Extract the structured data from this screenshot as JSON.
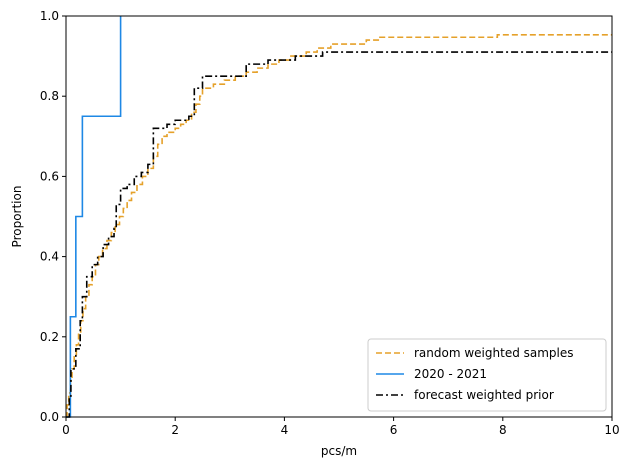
{
  "chart_data": {
    "type": "line",
    "title": "",
    "xlabel": "pcs/m",
    "ylabel": "Proportion",
    "xlim": [
      0,
      10
    ],
    "ylim": [
      0,
      1
    ],
    "x_ticks": [
      0,
      2,
      4,
      6,
      8,
      10
    ],
    "y_ticks": [
      0.0,
      0.2,
      0.4,
      0.6,
      0.8,
      1.0
    ],
    "x_tick_labels": [
      "0",
      "2",
      "4",
      "6",
      "8",
      "10"
    ],
    "y_tick_labels": [
      "0.0",
      "0.2",
      "0.4",
      "0.6",
      "0.8",
      "1.0"
    ],
    "grid": false,
    "legend_position": "lower-right",
    "step": true,
    "series": [
      {
        "name": "random weighted samples",
        "color": "#e5a12a",
        "linestyle": "dashed",
        "points": [
          [
            0.0,
            0.0
          ],
          [
            0.02,
            0.03
          ],
          [
            0.05,
            0.06
          ],
          [
            0.08,
            0.09
          ],
          [
            0.11,
            0.12
          ],
          [
            0.15,
            0.15
          ],
          [
            0.19,
            0.18
          ],
          [
            0.23,
            0.21
          ],
          [
            0.27,
            0.24
          ],
          [
            0.31,
            0.27
          ],
          [
            0.36,
            0.3
          ],
          [
            0.42,
            0.33
          ],
          [
            0.48,
            0.35
          ],
          [
            0.54,
            0.38
          ],
          [
            0.6,
            0.4
          ],
          [
            0.67,
            0.42
          ],
          [
            0.75,
            0.44
          ],
          [
            0.83,
            0.46
          ],
          [
            0.9,
            0.48
          ],
          [
            0.98,
            0.5
          ],
          [
            1.05,
            0.52
          ],
          [
            1.12,
            0.54
          ],
          [
            1.2,
            0.56
          ],
          [
            1.3,
            0.58
          ],
          [
            1.4,
            0.6
          ],
          [
            1.5,
            0.62
          ],
          [
            1.6,
            0.65
          ],
          [
            1.68,
            0.68
          ],
          [
            1.76,
            0.7
          ],
          [
            1.85,
            0.71
          ],
          [
            2.0,
            0.72
          ],
          [
            2.1,
            0.73
          ],
          [
            2.2,
            0.74
          ],
          [
            2.3,
            0.76
          ],
          [
            2.38,
            0.78
          ],
          [
            2.45,
            0.8
          ],
          [
            2.5,
            0.82
          ],
          [
            2.7,
            0.83
          ],
          [
            2.9,
            0.84
          ],
          [
            3.1,
            0.85
          ],
          [
            3.3,
            0.86
          ],
          [
            3.5,
            0.87
          ],
          [
            3.7,
            0.88
          ],
          [
            3.9,
            0.89
          ],
          [
            4.1,
            0.9
          ],
          [
            4.4,
            0.91
          ],
          [
            4.6,
            0.92
          ],
          [
            4.85,
            0.93
          ],
          [
            5.5,
            0.94
          ],
          [
            5.75,
            0.947
          ],
          [
            7.9,
            0.953
          ],
          [
            10.0,
            0.953
          ]
        ]
      },
      {
        "name": "2020 - 2021",
        "color": "#1e88e5",
        "linestyle": "solid",
        "points": [
          [
            0.0,
            0.0
          ],
          [
            0.08,
            0.25
          ],
          [
            0.18,
            0.5
          ],
          [
            0.3,
            0.75
          ],
          [
            1.0,
            1.0
          ]
        ]
      },
      {
        "name": "forecast weighted prior",
        "color": "#000000",
        "linestyle": "dashdot",
        "points": [
          [
            0.0,
            0.0
          ],
          [
            0.06,
            0.05
          ],
          [
            0.09,
            0.12
          ],
          [
            0.18,
            0.17
          ],
          [
            0.26,
            0.24
          ],
          [
            0.3,
            0.3
          ],
          [
            0.38,
            0.35
          ],
          [
            0.48,
            0.38
          ],
          [
            0.58,
            0.4
          ],
          [
            0.68,
            0.43
          ],
          [
            0.78,
            0.45
          ],
          [
            0.88,
            0.47
          ],
          [
            0.92,
            0.53
          ],
          [
            1.0,
            0.57
          ],
          [
            1.12,
            0.58
          ],
          [
            1.25,
            0.6
          ],
          [
            1.38,
            0.61
          ],
          [
            1.5,
            0.63
          ],
          [
            1.6,
            0.72
          ],
          [
            1.85,
            0.73
          ],
          [
            2.0,
            0.74
          ],
          [
            2.25,
            0.75
          ],
          [
            2.35,
            0.82
          ],
          [
            2.5,
            0.85
          ],
          [
            3.0,
            0.85
          ],
          [
            3.3,
            0.88
          ],
          [
            3.7,
            0.89
          ],
          [
            4.2,
            0.9
          ],
          [
            4.7,
            0.91
          ],
          [
            10.0,
            0.91
          ]
        ]
      }
    ]
  }
}
